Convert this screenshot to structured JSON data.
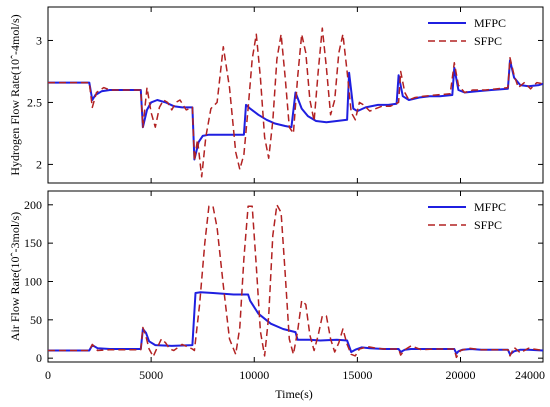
{
  "figure": {
    "xlabel": "Time(s)"
  },
  "chart_data": [
    {
      "type": "line",
      "ylabel": "Hydrogen Flow Rate(10^-4mol/s)",
      "xlim": [
        0,
        24000
      ],
      "ylim": [
        1.85,
        3.27
      ],
      "yticks": [
        2,
        2.5,
        3
      ],
      "ytick_labels": [
        "2",
        "2.5",
        "3"
      ],
      "grid": false,
      "legend_position": "top-right",
      "colors": {
        "MFPC": "#1f1fe0",
        "SFPC": "#b22222"
      },
      "series": [
        {
          "name": "MFPC",
          "style": "solid",
          "x": [
            0,
            2000,
            2150,
            2300,
            2600,
            3000,
            3500,
            4000,
            4500,
            4600,
            4800,
            5000,
            5300,
            5700,
            6100,
            6500,
            7000,
            7100,
            7300,
            7500,
            7800,
            8500,
            9200,
            9500,
            9600,
            9800,
            10200,
            10600,
            11000,
            11500,
            11800,
            12000,
            12300,
            12600,
            13000,
            13500,
            14000,
            14500,
            14600,
            14800,
            15000,
            15400,
            16000,
            16500,
            16900,
            17000,
            17200,
            17500,
            18000,
            18500,
            19000,
            19600,
            19700,
            19900,
            20200,
            20800,
            21500,
            22300,
            22400,
            22600,
            22900,
            23300,
            23800,
            24000
          ],
          "y": [
            2.66,
            2.66,
            2.52,
            2.56,
            2.59,
            2.6,
            2.6,
            2.6,
            2.6,
            2.3,
            2.44,
            2.5,
            2.52,
            2.5,
            2.47,
            2.46,
            2.46,
            2.04,
            2.18,
            2.23,
            2.24,
            2.24,
            2.24,
            2.24,
            2.48,
            2.45,
            2.4,
            2.36,
            2.33,
            2.31,
            2.3,
            2.58,
            2.45,
            2.39,
            2.35,
            2.34,
            2.35,
            2.36,
            2.74,
            2.45,
            2.43,
            2.46,
            2.48,
            2.48,
            2.49,
            2.72,
            2.55,
            2.52,
            2.54,
            2.55,
            2.55,
            2.56,
            2.78,
            2.6,
            2.58,
            2.59,
            2.6,
            2.61,
            2.84,
            2.7,
            2.64,
            2.63,
            2.64,
            2.65
          ]
        },
        {
          "name": "SFPC",
          "style": "dashed",
          "x": [
            0,
            2000,
            2150,
            2350,
            2700,
            3000,
            3500,
            4000,
            4500,
            4600,
            4800,
            5000,
            5200,
            5400,
            5600,
            5800,
            6000,
            6200,
            6400,
            6700,
            7000,
            7100,
            7250,
            7450,
            7650,
            7900,
            8200,
            8500,
            8800,
            9100,
            9300,
            9500,
            9700,
            9900,
            10100,
            10300,
            10500,
            10700,
            10900,
            11100,
            11300,
            11500,
            11700,
            11900,
            12100,
            12300,
            12500,
            12700,
            12900,
            13100,
            13300,
            13500,
            13700,
            13900,
            14100,
            14300,
            14500,
            14700,
            14900,
            15100,
            15300,
            15600,
            15900,
            16200,
            16600,
            17000,
            17100,
            17300,
            17500,
            17800,
            18200,
            18800,
            19500,
            19700,
            19900,
            20200,
            20600,
            21200,
            21800,
            22300,
            22400,
            22600,
            22800,
            23100,
            23400,
            23700,
            24000
          ],
          "y": [
            2.66,
            2.66,
            2.46,
            2.58,
            2.62,
            2.6,
            2.6,
            2.6,
            2.6,
            2.3,
            2.62,
            2.42,
            2.3,
            2.46,
            2.52,
            2.5,
            2.44,
            2.5,
            2.52,
            2.44,
            2.46,
            2.03,
            2.2,
            1.9,
            2.22,
            2.45,
            2.5,
            2.95,
            2.62,
            2.1,
            1.96,
            2.08,
            2.45,
            2.85,
            3.05,
            2.7,
            2.22,
            2.05,
            2.35,
            2.85,
            3.05,
            2.7,
            2.3,
            2.25,
            2.7,
            3.05,
            2.9,
            2.52,
            2.35,
            2.75,
            3.1,
            2.78,
            2.4,
            2.52,
            2.9,
            3.05,
            2.75,
            2.42,
            2.36,
            2.5,
            2.48,
            2.43,
            2.45,
            2.47,
            2.47,
            2.5,
            2.75,
            2.58,
            2.52,
            2.54,
            2.55,
            2.56,
            2.57,
            2.82,
            2.64,
            2.58,
            2.6,
            2.6,
            2.61,
            2.62,
            2.86,
            2.72,
            2.62,
            2.66,
            2.61,
            2.66,
            2.65
          ]
        }
      ]
    },
    {
      "type": "line",
      "ylabel": "Air Flow Rate(10^-3mol/s)",
      "xlim": [
        0,
        24000
      ],
      "ylim": [
        -5,
        218
      ],
      "yticks": [
        0,
        50,
        100,
        150,
        200
      ],
      "ytick_labels": [
        "0",
        "50",
        "100",
        "150",
        "200"
      ],
      "xticks": [
        0,
        5000,
        10000,
        15000,
        20000,
        24000
      ],
      "xtick_labels": [
        "0",
        "5000",
        "10000",
        "15000",
        "20000",
        "24000"
      ],
      "grid": false,
      "legend_position": "top-right",
      "colors": {
        "MFPC": "#1f1fe0",
        "SFPC": "#b22222"
      },
      "series": [
        {
          "name": "MFPC",
          "style": "solid",
          "x": [
            0,
            2000,
            2150,
            2400,
            3000,
            4500,
            4600,
            4750,
            4900,
            5200,
            6000,
            7000,
            7150,
            7400,
            8000,
            9000,
            9700,
            9800,
            10200,
            10800,
            11400,
            12000,
            12100,
            12300,
            12700,
            13200,
            14000,
            14500,
            14700,
            14900,
            15200,
            15600,
            16300,
            17000,
            17100,
            17300,
            17600,
            18000,
            19700,
            19800,
            19900,
            20100,
            20500,
            21000,
            22300,
            22400,
            22600,
            22900,
            23300,
            24000
          ],
          "y": [
            10,
            10,
            17,
            13,
            12,
            12,
            38,
            33,
            22,
            17,
            16,
            17,
            85,
            86,
            85,
            83,
            83,
            75,
            58,
            45,
            38,
            34,
            24,
            24,
            24,
            23,
            24,
            23,
            8,
            11,
            14,
            13,
            12,
            12,
            8,
            11,
            12,
            12,
            12,
            6,
            9,
            11,
            12,
            11,
            11,
            5,
            9,
            11,
            11,
            10
          ]
        },
        {
          "name": "SFPC",
          "style": "dashed",
          "x": [
            0,
            2000,
            2150,
            2400,
            3000,
            4500,
            4600,
            4750,
            4900,
            5100,
            5300,
            5500,
            5700,
            5900,
            6100,
            6500,
            7000,
            7100,
            7350,
            7600,
            7800,
            8000,
            8200,
            8500,
            8800,
            9100,
            9300,
            9500,
            9700,
            9900,
            10100,
            10300,
            10500,
            10700,
            10900,
            11100,
            11300,
            11500,
            11700,
            11900,
            12100,
            12300,
            12500,
            12700,
            12900,
            13100,
            13300,
            13500,
            13700,
            13900,
            14100,
            14300,
            14500,
            14700,
            14900,
            15100,
            15500,
            15900,
            16300,
            17000,
            17100,
            17300,
            17600,
            18100,
            18700,
            19700,
            19800,
            20000,
            20400,
            21000,
            22300,
            22400,
            22600,
            22900,
            23300,
            24000
          ],
          "y": [
            10,
            10,
            18,
            10,
            11,
            11,
            40,
            28,
            12,
            2,
            14,
            25,
            20,
            12,
            10,
            18,
            12,
            10,
            70,
            150,
            198,
            198,
            170,
            95,
            25,
            5,
            40,
            130,
            198,
            198,
            120,
            35,
            3,
            55,
            160,
            200,
            190,
            110,
            25,
            5,
            35,
            75,
            70,
            30,
            10,
            30,
            55,
            55,
            25,
            8,
            20,
            38,
            18,
            5,
            3,
            12,
            15,
            13,
            12,
            12,
            4,
            11,
            16,
            11,
            12,
            12,
            1,
            10,
            13,
            11,
            11,
            3,
            14,
            7,
            13,
            10
          ]
        }
      ]
    }
  ]
}
